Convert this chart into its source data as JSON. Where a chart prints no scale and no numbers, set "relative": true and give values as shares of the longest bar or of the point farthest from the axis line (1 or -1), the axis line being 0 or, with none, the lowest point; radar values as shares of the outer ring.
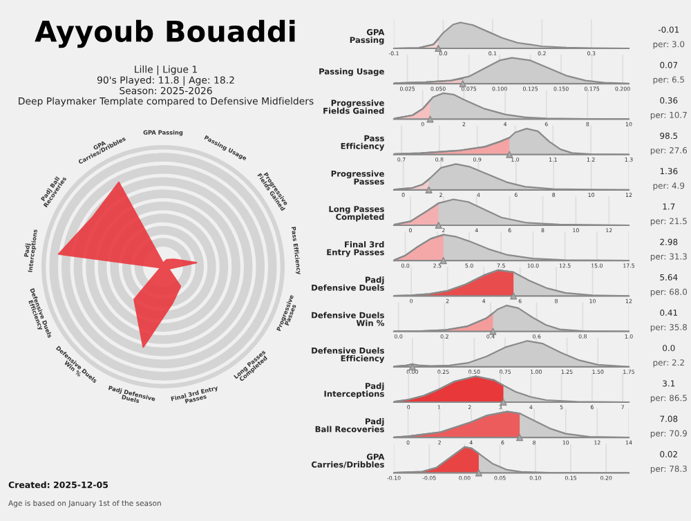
{
  "chart_data": [
    {
      "type": "radar",
      "title": "Ayyoub Bouaddi",
      "subtitle": "Lille | Ligue 1\n90's Played: 11.8 | Age: 18.2\nSeason: 2025-2026\nDeep Playmaker Template compared to Defensive Midfielders",
      "relative": true,
      "grid": true,
      "categories": [
        "GPA Passing",
        "Passing Usage",
        "Progressive\nFields Gained",
        "Pass Efficiency",
        "Progressive\nPasses",
        "Long Passes\nCompleted",
        "Final 3rd Entry\nPasses",
        "Padj Defensive\nDuels",
        "Defensive Duels\nWin %",
        "Defensive Duels\nEfficiency",
        "Padj\nInterceptions",
        "Padj Ball\nRecoveries",
        "GPA\nCarries/Dribbles"
      ],
      "series": [
        {
          "color": "#e8383d",
          "values": [
            0.03,
            0.065,
            0.107,
            0.276,
            0.049,
            0.215,
            0.313,
            0.68,
            0.358,
            0.022,
            0.865,
            0.709,
            0.783
          ]
        }
      ],
      "annotations": [
        "Created: 2025-12-05",
        "Age is based on January 1st of the season"
      ]
    },
    {
      "type": "area",
      "relative": true,
      "ylabel": "GPA\nPassing",
      "xlim": [
        -0.1,
        0.376
      ],
      "xticks": [
        -0.1,
        {
          "value": 0,
          "label": "0.0"
        },
        0.1,
        0.2,
        0.3
      ],
      "grid": "x",
      "annotations": [
        "-0.01",
        "per: 3.0"
      ],
      "series": [
        {
          "color": "#cccccc",
          "x": [
            -0.1,
            -0.05,
            -0.02,
            0.0,
            0.02,
            0.035,
            0.06,
            0.09,
            0.12,
            0.15,
            0.2,
            0.25,
            0.3,
            0.376
          ],
          "values": [
            0,
            0.02,
            0.15,
            0.6,
            0.92,
            1,
            0.9,
            0.65,
            0.4,
            0.22,
            0.08,
            0.03,
            0.01,
            0
          ]
        },
        {
          "color": "#f2d4d4",
          "x": [
            -0.1,
            -0.05,
            -0.02,
            -0.01
          ],
          "values": [
            0,
            0.02,
            0.15,
            0.35
          ]
        },
        {
          "type": "scatter",
          "marker": "triangle",
          "color": "#aaaaaa",
          "x": [
            -0.01
          ],
          "values": [
            0
          ]
        }
      ]
    },
    {
      "type": "area",
      "relative": true,
      "ylabel": "Passing Usage",
      "xlim": [
        0.014,
        0.205
      ],
      "xticks": [
        0.025,
        {
          "value": 0.05,
          "label": "0.050"
        },
        0.075,
        {
          "value": 0.1,
          "label": "0.100"
        },
        0.125,
        {
          "value": 0.15,
          "label": "0.150"
        },
        0.175,
        {
          "value": 0.2,
          "label": "0.200"
        }
      ],
      "grid": "x",
      "annotations": [
        "0.07",
        "per: 6.5"
      ],
      "series": [
        {
          "color": "#cccccc",
          "x": [
            0.014,
            0.04,
            0.06,
            0.075,
            0.09,
            0.1,
            0.11,
            0.125,
            0.14,
            0.155,
            0.17,
            0.185,
            0.205
          ],
          "values": [
            0.02,
            0.06,
            0.12,
            0.28,
            0.65,
            0.9,
            1,
            0.9,
            0.6,
            0.3,
            0.12,
            0.04,
            0.01
          ]
        },
        {
          "color": "#f0c4c4",
          "x": [
            0.014,
            0.04,
            0.06,
            0.07
          ],
          "values": [
            0.02,
            0.06,
            0.12,
            0.2
          ]
        },
        {
          "type": "scatter",
          "marker": "triangle",
          "color": "#aaaaaa",
          "x": [
            0.07
          ],
          "values": [
            0
          ]
        }
      ]
    },
    {
      "type": "area",
      "relative": true,
      "ylabel": "Progressive\nFields Gained",
      "xlim": [
        -1.4,
        10
      ],
      "xticks": [
        0,
        2,
        4,
        6,
        8,
        10
      ],
      "grid": "x",
      "annotations": [
        "0.36",
        "per: 10.7"
      ],
      "series": [
        {
          "color": "#cccccc",
          "x": [
            -1.4,
            -0.5,
            0,
            0.5,
            1,
            1.5,
            2,
            3,
            4,
            5,
            6,
            8,
            10
          ],
          "values": [
            0.02,
            0.15,
            0.4,
            0.85,
            1,
            0.95,
            0.75,
            0.4,
            0.18,
            0.07,
            0.03,
            0.01,
            0
          ]
        },
        {
          "color": "#f4c0c0",
          "x": [
            -1.4,
            -0.5,
            0,
            0.36
          ],
          "values": [
            0.02,
            0.15,
            0.4,
            0.72
          ]
        },
        {
          "type": "scatter",
          "marker": "triangle",
          "color": "#aaaaaa",
          "x": [
            0.36
          ],
          "values": [
            0
          ]
        }
      ]
    },
    {
      "type": "area",
      "relative": true,
      "ylabel": "Pass\nEfficiency",
      "xlim": [
        0.68,
        1.3
      ],
      "xticks": [
        0.7,
        0.8,
        0.9,
        {
          "value": 1,
          "label": "1.0"
        },
        1.1,
        1.2,
        1.3
      ],
      "grid": "x",
      "annotations": [
        "98.5",
        "per: 27.6"
      ],
      "series": [
        {
          "color": "#cccccc",
          "x": [
            0.68,
            0.75,
            0.85,
            0.92,
            0.96,
            0.985,
            1.0,
            1.03,
            1.06,
            1.09,
            1.12,
            1.15,
            1.2,
            1.3
          ],
          "values": [
            0.02,
            0.05,
            0.15,
            0.3,
            0.5,
            0.65,
            0.85,
            1,
            0.9,
            0.5,
            0.2,
            0.06,
            0.01,
            0
          ]
        },
        {
          "color": "#f4a4a4",
          "x": [
            0.68,
            0.75,
            0.85,
            0.92,
            0.96,
            0.985
          ],
          "values": [
            0.02,
            0.05,
            0.15,
            0.3,
            0.5,
            0.65
          ]
        },
        {
          "type": "scatter",
          "marker": "triangle",
          "color": "#aaaaaa",
          "x": [
            0.985
          ],
          "values": [
            0
          ]
        }
      ]
    },
    {
      "type": "area",
      "relative": true,
      "ylabel": "Progressive\nPasses",
      "xlim": [
        -0.5,
        12
      ],
      "xticks": [
        0,
        2,
        4,
        6,
        8,
        10,
        12
      ],
      "grid": "x",
      "annotations": [
        "1.36",
        "per: 4.9"
      ],
      "series": [
        {
          "color": "#cccccc",
          "x": [
            -0.5,
            0.5,
            1,
            1.5,
            2,
            2.8,
            3.5,
            4.5,
            5.5,
            6.5,
            8,
            10,
            12
          ],
          "values": [
            0.01,
            0.08,
            0.2,
            0.5,
            0.85,
            1,
            0.9,
            0.6,
            0.3,
            0.12,
            0.03,
            0.01,
            0
          ]
        },
        {
          "color": "#f2cccc",
          "x": [
            -0.5,
            0.5,
            1,
            1.36
          ],
          "values": [
            0.01,
            0.08,
            0.2,
            0.4
          ]
        },
        {
          "type": "scatter",
          "marker": "triangle",
          "color": "#aaaaaa",
          "x": [
            1.36
          ],
          "values": [
            0
          ]
        }
      ]
    },
    {
      "type": "area",
      "relative": true,
      "ylabel": "Long Passes\nCompleted",
      "xlim": [
        -1,
        13.2
      ],
      "xticks": [
        0,
        2,
        4,
        6,
        8,
        10,
        12
      ],
      "grid": "x",
      "annotations": [
        "1.7",
        "per: 21.5"
      ],
      "series": [
        {
          "color": "#cccccc",
          "x": [
            -1,
            0,
            1,
            1.7,
            2.6,
            3.5,
            4.5,
            5.5,
            7,
            9,
            13.2
          ],
          "values": [
            0.02,
            0.15,
            0.55,
            0.85,
            1,
            0.9,
            0.6,
            0.3,
            0.1,
            0.03,
            0
          ]
        },
        {
          "color": "#f4b0b0",
          "x": [
            -1,
            0,
            1,
            1.7
          ],
          "values": [
            0.02,
            0.15,
            0.55,
            0.85
          ]
        },
        {
          "type": "scatter",
          "marker": "triangle",
          "color": "#aaaaaa",
          "x": [
            1.7
          ],
          "values": [
            0
          ]
        }
      ]
    },
    {
      "type": "area",
      "relative": true,
      "ylabel": "Final 3rd\nEntry Passes",
      "xlim": [
        -0.9,
        17.5
      ],
      "xticks": [
        {
          "value": 0,
          "label": "0.0"
        },
        2.5,
        {
          "value": 5,
          "label": "5.0"
        },
        7.5,
        {
          "value": 10,
          "label": "10.0"
        },
        12.5,
        {
          "value": 15,
          "label": "15.0"
        },
        17.5
      ],
      "grid": "x",
      "annotations": [
        "2.98",
        "per: 31.3"
      ],
      "series": [
        {
          "color": "#cccccc",
          "x": [
            -0.9,
            0,
            1,
            2,
            2.98,
            4,
            5,
            6.5,
            8,
            10,
            12.5,
            17.5
          ],
          "values": [
            0.02,
            0.2,
            0.55,
            0.85,
            1,
            0.92,
            0.75,
            0.45,
            0.22,
            0.08,
            0.02,
            0
          ]
        },
        {
          "color": "#f4a8a8",
          "x": [
            -0.9,
            0,
            1,
            2,
            2.98
          ],
          "values": [
            0.02,
            0.2,
            0.55,
            0.85,
            1
          ]
        },
        {
          "type": "scatter",
          "marker": "triangle",
          "color": "#aaaaaa",
          "x": [
            2.98
          ],
          "values": [
            0
          ]
        }
      ]
    },
    {
      "type": "area",
      "relative": true,
      "ylabel": "Padj\nDefensive Duels",
      "xlim": [
        -0.96,
        12
      ],
      "xticks": [
        0,
        2,
        4,
        6,
        8,
        10,
        12
      ],
      "grid": "x",
      "annotations": [
        "5.64",
        "per: 68.0"
      ],
      "series": [
        {
          "color": "#cccccc",
          "x": [
            -0.96,
            0,
            1,
            2,
            3,
            4,
            4.8,
            5.64,
            6.5,
            7.5,
            8.5,
            10,
            12
          ],
          "values": [
            0.01,
            0.03,
            0.08,
            0.2,
            0.45,
            0.8,
            1,
            0.92,
            0.6,
            0.3,
            0.12,
            0.03,
            0
          ]
        },
        {
          "color": "#e84c4c",
          "x": [
            -0.96,
            0,
            1,
            2,
            3,
            4,
            4.8,
            5.64
          ],
          "values": [
            0.01,
            0.03,
            0.08,
            0.2,
            0.45,
            0.8,
            1,
            0.92
          ]
        },
        {
          "type": "scatter",
          "marker": "triangle",
          "color": "#aaaaaa",
          "x": [
            5.64
          ],
          "values": [
            0
          ]
        }
      ]
    },
    {
      "type": "area",
      "relative": true,
      "ylabel": "Defensive Duels\nWin %",
      "xlim": [
        -0.02,
        1.0
      ],
      "xticks": [
        {
          "value": 0,
          "label": "0.0"
        },
        0.2,
        0.4,
        0.6,
        0.8,
        {
          "value": 1,
          "label": "1.0"
        }
      ],
      "grid": "x",
      "annotations": [
        "0.41",
        "per: 35.8"
      ],
      "series": [
        {
          "color": "#cccccc",
          "x": [
            -0.02,
            0.1,
            0.2,
            0.3,
            0.38,
            0.41,
            0.43,
            0.47,
            0.52,
            0.58,
            0.64,
            0.7,
            0.8,
            1.0
          ],
          "values": [
            0,
            0.01,
            0.05,
            0.2,
            0.5,
            0.7,
            0.85,
            1,
            0.9,
            0.55,
            0.25,
            0.08,
            0.01,
            0
          ]
        },
        {
          "color": "#f49c9c",
          "x": [
            -0.02,
            0.1,
            0.2,
            0.3,
            0.38,
            0.41
          ],
          "values": [
            0,
            0.01,
            0.05,
            0.2,
            0.5,
            0.7
          ]
        },
        {
          "type": "scatter",
          "marker": "triangle",
          "color": "#aaaaaa",
          "x": [
            0.41
          ],
          "values": [
            0
          ]
        }
      ]
    },
    {
      "type": "area",
      "relative": true,
      "ylabel": "Defensive Duels\nEfficiency",
      "xlim": [
        -0.15,
        1.75
      ],
      "xticks": [
        {
          "value": 0,
          "label": "0.00"
        },
        0.25,
        {
          "value": 0.5,
          "label": "0.50"
        },
        0.75,
        {
          "value": 1,
          "label": "1.00"
        },
        1.25,
        {
          "value": 1.5,
          "label": "1.50"
        },
        1.75
      ],
      "grid": "x",
      "annotations": [
        "0.0",
        "per: 2.2"
      ],
      "series": [
        {
          "color": "#cccccc",
          "x": [
            -0.15,
            -0.05,
            0,
            0.05,
            0.15,
            0.3,
            0.45,
            0.6,
            0.75,
            0.93,
            1.05,
            1.2,
            1.35,
            1.5,
            1.75
          ],
          "values": [
            0.01,
            0.05,
            0.1,
            0.06,
            0.03,
            0.05,
            0.15,
            0.4,
            0.75,
            1,
            0.9,
            0.55,
            0.25,
            0.08,
            0
          ]
        },
        {
          "color": "#eedcdc",
          "x": [
            -0.15,
            -0.05,
            0
          ],
          "values": [
            0.01,
            0.05,
            0.1
          ]
        },
        {
          "type": "scatter",
          "marker": "triangle",
          "color": "#aaaaaa",
          "x": [
            0
          ],
          "values": [
            0
          ]
        }
      ]
    },
    {
      "type": "area",
      "relative": true,
      "ylabel": "Padj\nInterceptions",
      "xlim": [
        -0.48,
        7.2
      ],
      "xticks": [
        0,
        1,
        2,
        3,
        4,
        5,
        6,
        7
      ],
      "grid": "x",
      "annotations": [
        "3.1",
        "per: 86.5"
      ],
      "series": [
        {
          "color": "#cccccc",
          "x": [
            -0.48,
            0,
            0.5,
            1,
            1.5,
            2.2,
            2.8,
            3.1,
            3.5,
            4,
            4.5,
            5.5,
            7.2
          ],
          "values": [
            0.02,
            0.1,
            0.25,
            0.5,
            0.8,
            1,
            0.85,
            0.65,
            0.4,
            0.2,
            0.08,
            0.02,
            0
          ]
        },
        {
          "color": "#e8383a",
          "x": [
            -0.48,
            0,
            0.5,
            1,
            1.5,
            2.2,
            2.8,
            3.1
          ],
          "values": [
            0.02,
            0.1,
            0.25,
            0.5,
            0.8,
            1,
            0.85,
            0.65
          ]
        },
        {
          "type": "scatter",
          "marker": "triangle",
          "color": "#aaaaaa",
          "x": [
            3.1
          ],
          "values": [
            0
          ]
        }
      ]
    },
    {
      "type": "area",
      "relative": true,
      "ylabel": "Padj\nBall Recoveries",
      "xlim": [
        -0.9,
        14
      ],
      "xticks": [
        0,
        2,
        4,
        6,
        8,
        10,
        12,
        14
      ],
      "grid": "x",
      "annotations": [
        "7.08",
        "per: 70.9"
      ],
      "series": [
        {
          "color": "#cccccc",
          "x": [
            -0.9,
            0,
            2,
            3,
            4,
            5,
            6.3,
            7.08,
            8,
            9,
            10,
            11.5,
            14
          ],
          "values": [
            0.01,
            0.05,
            0.2,
            0.4,
            0.6,
            0.85,
            1,
            0.93,
            0.65,
            0.35,
            0.15,
            0.03,
            0
          ]
        },
        {
          "color": "#ec5c5c",
          "x": [
            -0.9,
            0,
            2,
            3,
            4,
            5,
            6.3,
            7.08
          ],
          "values": [
            0.01,
            0.05,
            0.2,
            0.4,
            0.6,
            0.85,
            1,
            0.93
          ]
        },
        {
          "type": "scatter",
          "marker": "triangle",
          "color": "#aaaaaa",
          "x": [
            7.08
          ],
          "values": [
            0
          ]
        }
      ]
    },
    {
      "type": "area",
      "relative": true,
      "ylabel": "GPA\nCarries/Dribbles",
      "xlim": [
        -0.1,
        0.232
      ],
      "xticks": [
        {
          "value": -0.1,
          "label": "-0.10"
        },
        -0.05,
        {
          "value": 0,
          "label": "0.00"
        },
        0.05,
        {
          "value": 0.1,
          "label": "0.10"
        },
        0.15,
        {
          "value": 0.2,
          "label": "0.20"
        }
      ],
      "grid": "x",
      "annotations": [
        "0.02",
        "per: 78.3"
      ],
      "series": [
        {
          "color": "#cccccc",
          "x": [
            -0.1,
            -0.06,
            -0.04,
            -0.02,
            0,
            0.01,
            0.02,
            0.04,
            0.06,
            0.08,
            0.12,
            0.232
          ],
          "values": [
            0.01,
            0.05,
            0.2,
            0.6,
            1,
            0.95,
            0.75,
            0.35,
            0.12,
            0.04,
            0.01,
            0
          ]
        },
        {
          "color": "#e84444",
          "x": [
            -0.1,
            -0.06,
            -0.04,
            -0.02,
            0,
            0.01,
            0.02
          ],
          "values": [
            0.01,
            0.05,
            0.2,
            0.6,
            1,
            0.95,
            0.75
          ]
        },
        {
          "type": "scatter",
          "marker": "triangle",
          "color": "#aaaaaa",
          "x": [
            0.02
          ],
          "values": [
            0
          ]
        }
      ]
    }
  ]
}
